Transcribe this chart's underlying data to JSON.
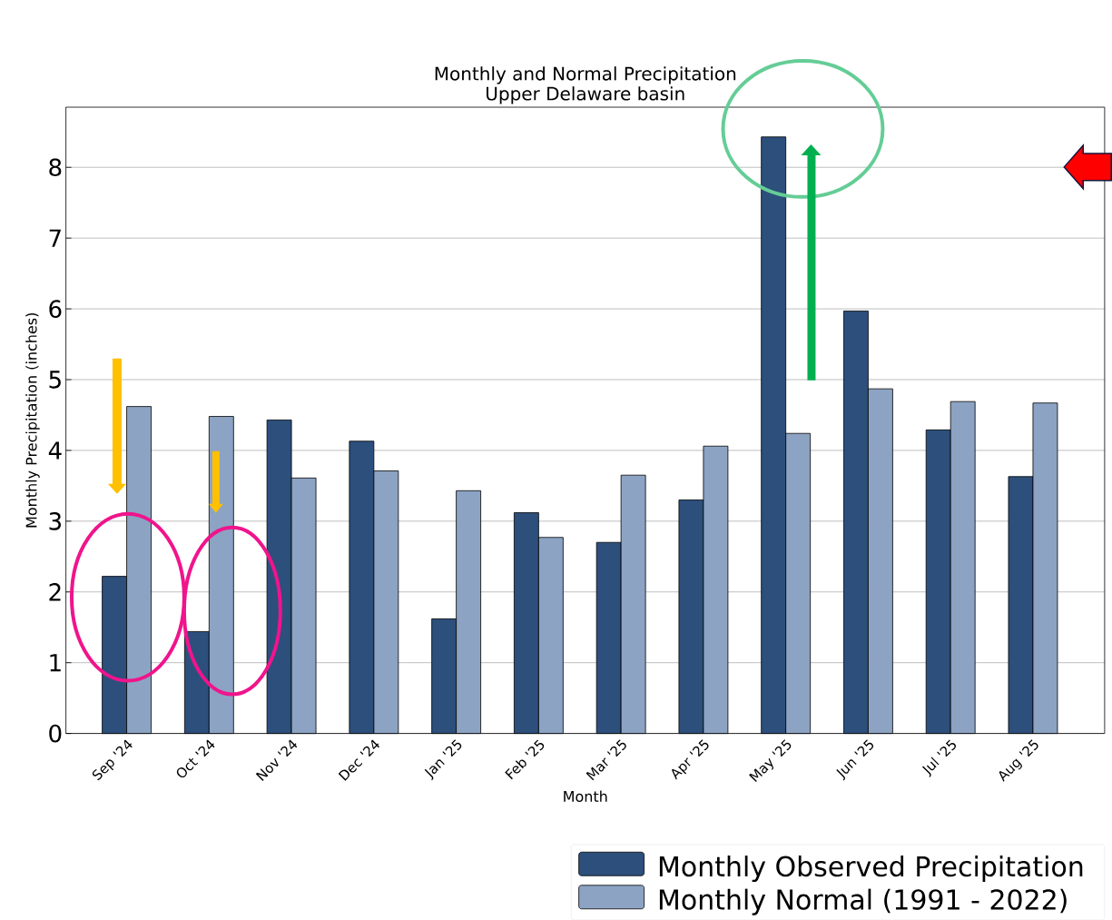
{
  "chart_data": {
    "type": "bar",
    "title": "Monthly and Normal Precipitation",
    "subtitle": "Upper Delaware basin",
    "xlabel": "Month",
    "ylabel": "Monthly Precipitation (inches)",
    "categories": [
      "Sep '24",
      "Oct '24",
      "Nov '24",
      "Dec '24",
      "Jan '25",
      "Feb '25",
      "Mar '25",
      "Apr '25",
      "May '25",
      "Jun '25",
      "Jul '25",
      "Aug '25"
    ],
    "series": [
      {
        "name": "Monthly Observed Precipitation",
        "color": "#2c4f7c",
        "values": [
          2.22,
          1.44,
          4.43,
          4.13,
          1.62,
          3.12,
          2.7,
          3.3,
          8.43,
          5.97,
          4.29,
          3.63
        ]
      },
      {
        "name": "Monthly Normal (1991 - 2022)",
        "color": "#8ca3c3",
        "values": [
          4.62,
          4.48,
          3.61,
          3.71,
          3.43,
          2.77,
          3.65,
          4.06,
          4.24,
          4.87,
          4.69,
          4.67
        ]
      }
    ],
    "ylim": [
      0,
      8.85
    ],
    "yticks": [
      0,
      1,
      2,
      3,
      4,
      5,
      6,
      7,
      8
    ],
    "grid": "y",
    "legend": "bottom right"
  }
}
